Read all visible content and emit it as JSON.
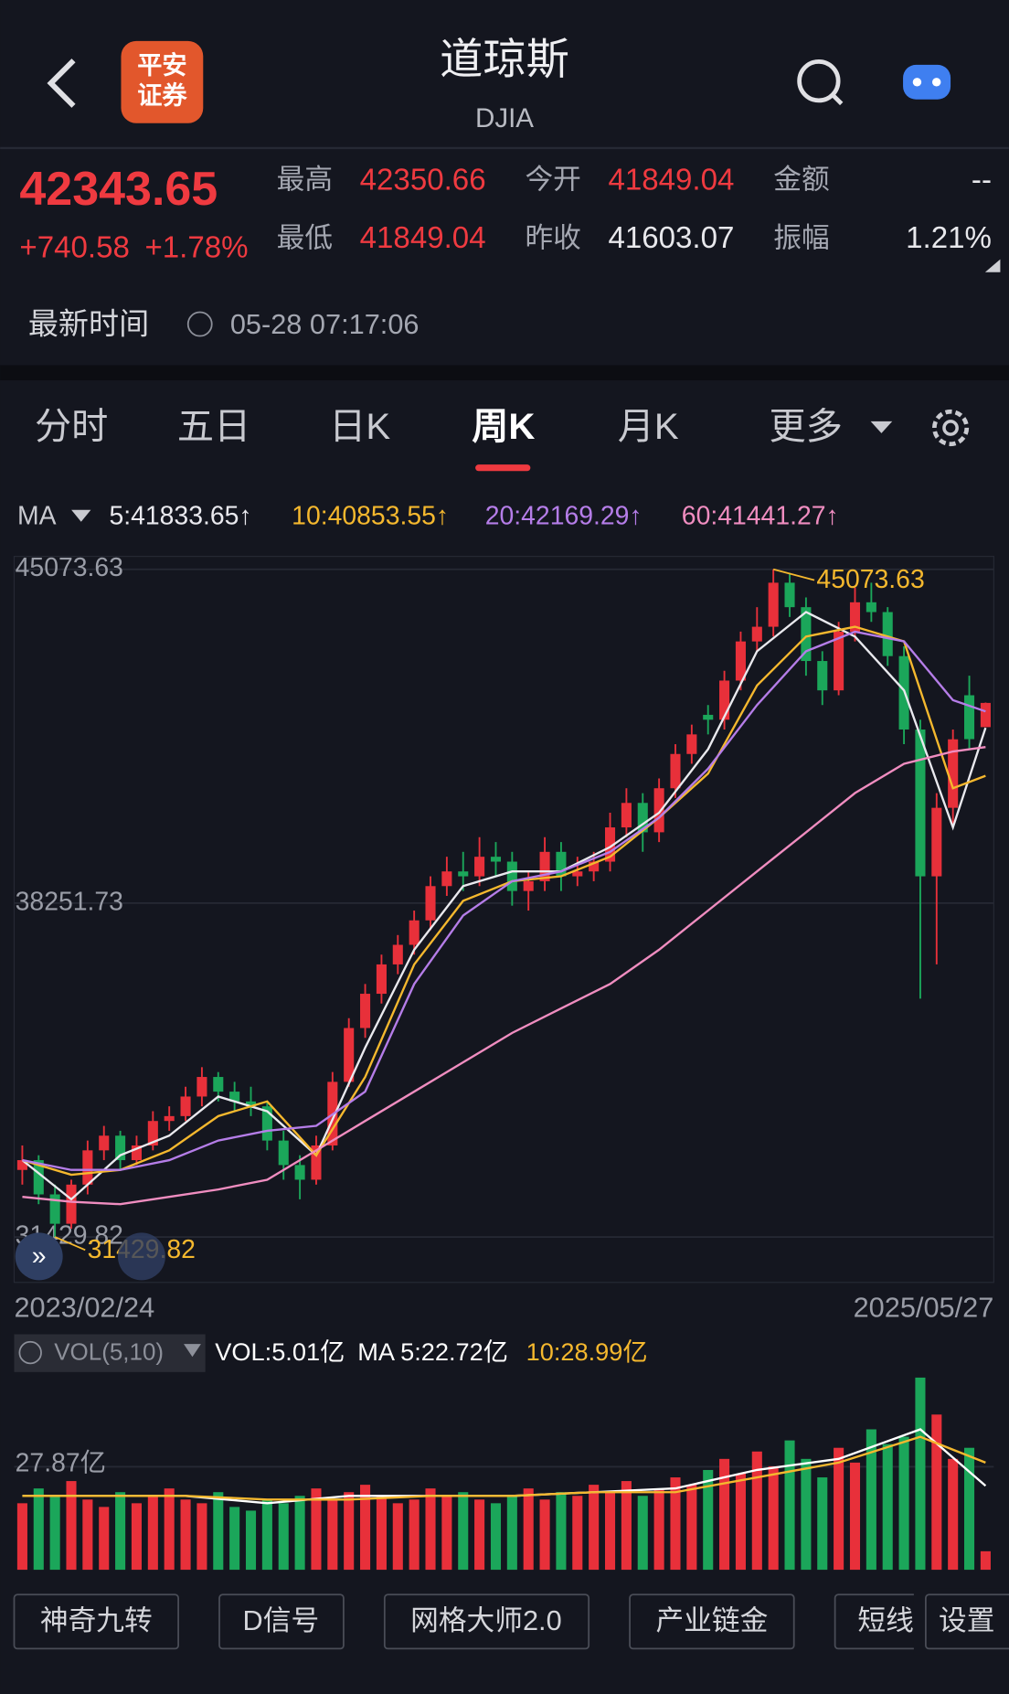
{
  "header": {
    "title": "道琼斯",
    "subtitle": "DJIA",
    "logo": [
      "平安",
      "证券"
    ]
  },
  "quote": {
    "price": "42343.65",
    "change": "+740.58",
    "change_pct": "+1.78%",
    "rows": [
      [
        {
          "label": "最高",
          "value": "42350.66"
        },
        {
          "label": "今开",
          "value": "41849.04"
        },
        {
          "label": "金额",
          "value": "--"
        }
      ],
      [
        {
          "label": "最低",
          "value": "41849.04"
        },
        {
          "label": "昨收",
          "value": "41603.07"
        },
        {
          "label": "振幅",
          "value": "1.21%"
        }
      ]
    ],
    "time_label": "最新时间",
    "time": "05-28 07:17:06"
  },
  "tabs": [
    "分时",
    "五日",
    "日K",
    "周K",
    "月K",
    "更多"
  ],
  "buttons": [
    "神奇九转",
    "D信号",
    "网格大师2.0",
    "产业链金",
    "短线",
    "设置"
  ],
  "chart_data": [
    {
      "type": "candlestick",
      "legend_title": "MA",
      "up_color": "#e8303a",
      "down_color": "#1ba65a",
      "categories": [
        "2023/02/24",
        null,
        null,
        null,
        null,
        null,
        null,
        null,
        null,
        null,
        null,
        null,
        null,
        null,
        null,
        null,
        null,
        null,
        null,
        null,
        null,
        null,
        null,
        null,
        null,
        null,
        null,
        null,
        null,
        null,
        null,
        null,
        null,
        null,
        null,
        null,
        null,
        null,
        null,
        null,
        null,
        null,
        null,
        null,
        null,
        null,
        null,
        null,
        null,
        null,
        null,
        null,
        null,
        null,
        null,
        null,
        null,
        null,
        null,
        "2025/05/27"
      ],
      "candles": [
        [
          32800,
          33300,
          32500,
          33000
        ],
        [
          33000,
          33100,
          32100,
          32300
        ],
        [
          32300,
          32500,
          31429.82,
          31700
        ],
        [
          31700,
          32600,
          31600,
          32500
        ],
        [
          32500,
          33400,
          32300,
          33200
        ],
        [
          33200,
          33700,
          33000,
          33500
        ],
        [
          33500,
          33600,
          32800,
          33000
        ],
        [
          33000,
          33500,
          32900,
          33300
        ],
        [
          33300,
          34000,
          33200,
          33800
        ],
        [
          33800,
          34100,
          33600,
          33900
        ],
        [
          33900,
          34500,
          33800,
          34300
        ],
        [
          34300,
          34900,
          34100,
          34700
        ],
        [
          34700,
          34800,
          34200,
          34400
        ],
        [
          34400,
          34600,
          34000,
          34200
        ],
        [
          34200,
          34500,
          33900,
          34100
        ],
        [
          34100,
          34200,
          33200,
          33400
        ],
        [
          33400,
          33600,
          32600,
          32900
        ],
        [
          32900,
          33100,
          32200,
          32600
        ],
        [
          32600,
          33500,
          32500,
          33300
        ],
        [
          33300,
          34800,
          33200,
          34600
        ],
        [
          34600,
          35900,
          34500,
          35700
        ],
        [
          35700,
          36600,
          35500,
          36400
        ],
        [
          36400,
          37200,
          36200,
          37000
        ],
        [
          37000,
          37600,
          36800,
          37400
        ],
        [
          37400,
          38100,
          37200,
          37900
        ],
        [
          37900,
          38800,
          37700,
          38600
        ],
        [
          38600,
          39200,
          38400,
          38900
        ],
        [
          38900,
          39300,
          38500,
          38800
        ],
        [
          38800,
          39600,
          38600,
          39200
        ],
        [
          39200,
          39500,
          38800,
          39100
        ],
        [
          39100,
          39300,
          38200,
          38500
        ],
        [
          38500,
          38900,
          38100,
          38700
        ],
        [
          38700,
          39600,
          38500,
          39300
        ],
        [
          39300,
          39500,
          38500,
          38800
        ],
        [
          38800,
          39200,
          38600,
          38900
        ],
        [
          38900,
          39300,
          38700,
          39100
        ],
        [
          39100,
          40100,
          38900,
          39800
        ],
        [
          39800,
          40600,
          39600,
          40300
        ],
        [
          40300,
          40500,
          39300,
          39700
        ],
        [
          39700,
          40800,
          39500,
          40600
        ],
        [
          40600,
          41500,
          40400,
          41300
        ],
        [
          41300,
          41900,
          41100,
          41700
        ],
        [
          42100,
          42300,
          41700,
          42000
        ],
        [
          42000,
          43000,
          41800,
          42800
        ],
        [
          42800,
          43800,
          42600,
          43600
        ],
        [
          43600,
          44300,
          43400,
          43900
        ],
        [
          43900,
          45073.63,
          43700,
          44800
        ],
        [
          44800,
          45000,
          44100,
          44300
        ],
        [
          44300,
          44500,
          42900,
          43200
        ],
        [
          43200,
          43400,
          42300,
          42600
        ],
        [
          42600,
          44000,
          42500,
          43800
        ],
        [
          43800,
          44700,
          43600,
          44400
        ],
        [
          44400,
          44800,
          44000,
          44200
        ],
        [
          44200,
          44300,
          43100,
          43300
        ],
        [
          43300,
          43500,
          41500,
          41800
        ],
        [
          41800,
          42000,
          36300,
          38800
        ],
        [
          38800,
          40500,
          37000,
          40200
        ],
        [
          40200,
          41800,
          39800,
          41600
        ],
        [
          42500,
          42900,
          41400,
          41603.07
        ],
        [
          41849.04,
          42350.66,
          41849.04,
          42343.65
        ]
      ],
      "ylim": [
        30502,
        45338
      ],
      "yticks": [
        31429.82,
        38251.73,
        45073.63
      ],
      "grid": true,
      "series": [
        {
          "name": "5:41833.65↑",
          "color": "#e9e9ee",
          "x": [
            0,
            3,
            6,
            9,
            12,
            15,
            18,
            21,
            24,
            27,
            30,
            33,
            36,
            39,
            42,
            45,
            48,
            51,
            54,
            57,
            59
          ],
          "values": [
            33000,
            32200,
            33100,
            33500,
            34300,
            34000,
            33100,
            35300,
            37300,
            38600,
            38900,
            38900,
            39400,
            40100,
            41400,
            43400,
            44200,
            43700,
            42600,
            39800,
            41833.65
          ]
        },
        {
          "name": "10:40853.55↑",
          "color": "#f5b82e",
          "x": [
            0,
            3,
            6,
            9,
            12,
            15,
            18,
            21,
            24,
            27,
            30,
            33,
            36,
            39,
            42,
            45,
            48,
            51,
            54,
            57,
            59
          ],
          "values": [
            33000,
            32700,
            32800,
            33200,
            33900,
            34200,
            33100,
            34700,
            37000,
            38300,
            38700,
            38800,
            39200,
            40000,
            40900,
            42700,
            43700,
            43900,
            43600,
            40600,
            40853.55
          ]
        },
        {
          "name": "20:42169.29↑",
          "color": "#b57de8",
          "x": [
            0,
            3,
            6,
            9,
            12,
            15,
            18,
            21,
            24,
            27,
            30,
            33,
            36,
            39,
            42,
            45,
            48,
            51,
            54,
            57,
            59
          ],
          "values": [
            33000,
            32800,
            32800,
            33000,
            33400,
            33600,
            33700,
            34400,
            36600,
            38000,
            38700,
            38900,
            39300,
            40000,
            41000,
            42300,
            43400,
            43800,
            43600,
            42400,
            42169.29
          ]
        },
        {
          "name": "60:41441.27↑",
          "color": "#f08dc0",
          "x": [
            0,
            3,
            6,
            9,
            12,
            15,
            18,
            21,
            24,
            27,
            30,
            33,
            36,
            39,
            42,
            45,
            48,
            51,
            54,
            57,
            59
          ],
          "values": [
            32250,
            32150,
            32100,
            32250,
            32400,
            32600,
            33200,
            33800,
            34400,
            35000,
            35600,
            36100,
            36600,
            37300,
            38100,
            38900,
            39700,
            40500,
            41100,
            41350,
            41441.27
          ]
        }
      ]
    },
    {
      "type": "bar",
      "legend_title": "VOL(5,10)",
      "name": "VOL:5.01亿",
      "values": [
        18,
        22,
        20,
        24,
        19,
        17,
        21,
        18,
        20,
        22,
        19,
        18,
        21,
        17,
        16,
        19,
        18,
        20,
        22,
        19,
        21,
        23,
        20,
        18,
        19,
        22,
        20,
        21,
        19,
        18,
        20,
        22,
        19,
        21,
        20,
        23,
        21,
        24,
        20,
        22,
        25,
        23,
        27,
        30,
        26,
        32,
        28,
        35,
        30,
        25,
        33,
        29,
        38,
        34,
        36,
        52,
        42,
        30,
        33,
        5.01
      ],
      "ylim": [
        0,
        53.5
      ],
      "yticks": [
        {
          "value": 27.87,
          "label": "27.87亿"
        }
      ],
      "series": [
        {
          "name": "MA 5:22.72亿",
          "color": "#ffffff",
          "x": [
            0,
            5,
            10,
            15,
            20,
            25,
            30,
            35,
            40,
            45,
            50,
            55,
            59
          ],
          "values": [
            20,
            20,
            20,
            18,
            20,
            20,
            20,
            21,
            22,
            27,
            30,
            38,
            22.72
          ]
        },
        {
          "name": "10:28.99亿",
          "color": "#f5b82e",
          "x": [
            0,
            5,
            10,
            15,
            20,
            25,
            30,
            35,
            40,
            45,
            50,
            55,
            59
          ],
          "values": [
            20,
            20,
            20,
            19,
            19,
            20,
            20,
            21,
            21,
            25,
            29,
            36,
            28.99
          ]
        }
      ]
    }
  ]
}
